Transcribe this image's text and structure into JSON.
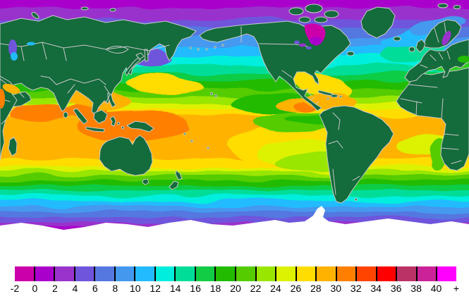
{
  "map": {
    "land_color": "#146B3C",
    "coastline_color": "#C9C9C9",
    "border_color": "#C8C8C8",
    "ice_color": "#FFFFFF",
    "background_color": "#FFFFFF",
    "ocean_bands": [
      {
        "color": "#CC00AA",
        "to": 0.042
      },
      {
        "color": "#AA00CC",
        "to": 0.085
      },
      {
        "color": "#9933CC",
        "to": 0.125
      },
      {
        "color": "#6E55DC",
        "to": 0.16
      },
      {
        "color": "#5577E0",
        "to": 0.195
      },
      {
        "color": "#4499EE",
        "to": 0.23
      },
      {
        "color": "#22BBFF",
        "to": 0.265
      },
      {
        "color": "#00EEDD",
        "to": 0.3
      },
      {
        "color": "#00DD99",
        "to": 0.33
      },
      {
        "color": "#11CC44",
        "to": 0.36
      },
      {
        "color": "#22BB00",
        "to": 0.39
      },
      {
        "color": "#55CC00",
        "to": 0.42
      },
      {
        "color": "#99E600",
        "to": 0.445
      },
      {
        "color": "#DDF200",
        "to": 0.465
      },
      {
        "color": "#FFDD00",
        "to": 0.49
      },
      {
        "color": "#FFB300",
        "to": 0.655
      },
      {
        "color": "#FFDD00",
        "to": 0.685
      },
      {
        "color": "#DDF200",
        "to": 0.7
      },
      {
        "color": "#99E600",
        "to": 0.715
      },
      {
        "color": "#55CC00",
        "to": 0.735
      },
      {
        "color": "#22BB00",
        "to": 0.755
      },
      {
        "color": "#11CC44",
        "to": 0.775
      },
      {
        "color": "#00DD99",
        "to": 0.795
      },
      {
        "color": "#00EEDD",
        "to": 0.815
      },
      {
        "color": "#22BBFF",
        "to": 0.835
      },
      {
        "color": "#4499EE",
        "to": 0.855
      },
      {
        "color": "#5577E0",
        "to": 0.875
      },
      {
        "color": "#6E55DC",
        "to": 0.895
      },
      {
        "color": "#9933CC",
        "to": 0.915
      },
      {
        "color": "#AA00CC",
        "to": 0.94
      },
      {
        "color": "#CC00AA",
        "to": 1.0
      }
    ]
  },
  "palette": {
    "hot": "#FF8000",
    "warm": "#FFB300",
    "yellow": "#FFDD00",
    "yellow_green": "#DDF200",
    "lime": "#99E600",
    "green_light": "#55CC00",
    "green": "#22BB00",
    "green_med": "#33CC22",
    "teal": "#00DD99",
    "cyan_light": "#00EEDD",
    "cyan": "#22BBFF",
    "blue": "#4499EE",
    "blue_violet": "#5577E0",
    "violet": "#6E55DC",
    "purple": "#9933CC",
    "magenta_deep": "#AA00CC",
    "magenta": "#CC00AA"
  },
  "colorbar": {
    "min": -2,
    "max": 40,
    "step": 2,
    "overflow_label": "+",
    "tick_labels": [
      "-2",
      "0",
      "2",
      "4",
      "6",
      "8",
      "10",
      "12",
      "14",
      "16",
      "18",
      "20",
      "22",
      "24",
      "26",
      "28",
      "30",
      "32",
      "34",
      "36",
      "38",
      "40",
      "+"
    ],
    "segment_colors": [
      "#CC00AA",
      "#AA00CC",
      "#9933CC",
      "#6E55DC",
      "#5577E0",
      "#4499EE",
      "#22BBFF",
      "#00EEDD",
      "#00DD99",
      "#11CC44",
      "#22BB00",
      "#55CC00",
      "#99E600",
      "#DDF200",
      "#FFDD00",
      "#FFB300",
      "#FF8000",
      "#FF4400",
      "#FF0000",
      "#BB3366",
      "#CC2299",
      "#FF00FF"
    ]
  }
}
